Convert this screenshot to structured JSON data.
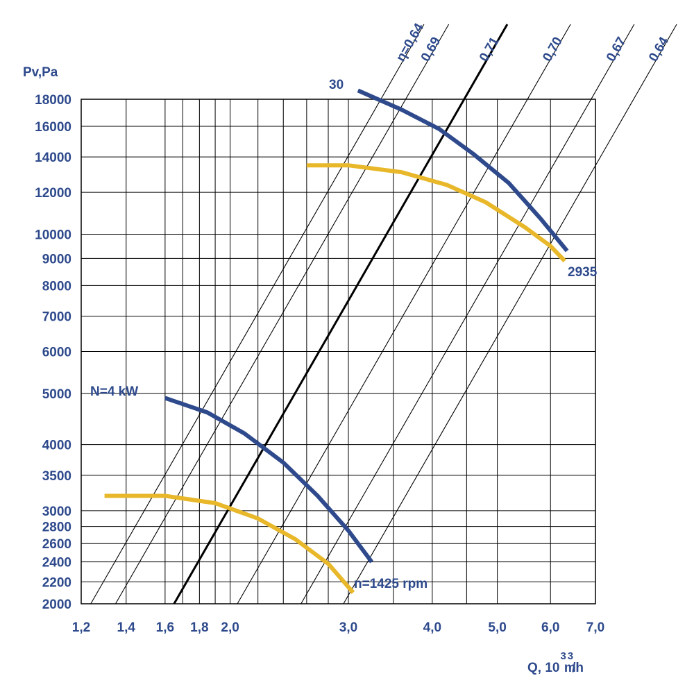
{
  "chart_data": {
    "type": "line",
    "title": "",
    "xlabel": "Q, 10",
    "xlabel_sup": "3",
    "xlabel_unit_m": "m",
    "xlabel_unit_sup": "3",
    "xlabel_unit_tail": "/h",
    "ylabel": "Pv,Pa",
    "xscale": "log",
    "yscale": "log",
    "xlim": [
      1.2,
      7.0
    ],
    "ylim": [
      2000,
      18000
    ],
    "x_ticks": [
      {
        "value": 1.2,
        "label": "1,2"
      },
      {
        "value": 1.4,
        "label": "1,4"
      },
      {
        "value": 1.6,
        "label": "1,6"
      },
      {
        "value": 1.8,
        "label": "1,8"
      },
      {
        "value": 2.0,
        "label": "2,0"
      },
      {
        "value": 3.0,
        "label": "3,0"
      },
      {
        "value": 4.0,
        "label": "4,0"
      },
      {
        "value": 5.0,
        "label": "5,0"
      },
      {
        "value": 6.0,
        "label": "6,0"
      },
      {
        "value": 7.0,
        "label": "7,0"
      }
    ],
    "x_gridlines": [
      1.2,
      1.4,
      1.6,
      1.7,
      1.8,
      1.9,
      2.0,
      2.2,
      2.4,
      2.6,
      2.8,
      3.0,
      3.5,
      4.0,
      4.5,
      5.0,
      6.0,
      7.0
    ],
    "y_ticks": [
      {
        "value": 18000,
        "label": "18000"
      },
      {
        "value": 16000,
        "label": "16000"
      },
      {
        "value": 14000,
        "label": "14000"
      },
      {
        "value": 12000,
        "label": "12000"
      },
      {
        "value": 10000,
        "label": "10000"
      },
      {
        "value": 9000,
        "label": "9000"
      },
      {
        "value": 8000,
        "label": "8000"
      },
      {
        "value": 7000,
        "label": "7000"
      },
      {
        "value": 6000,
        "label": "6000"
      },
      {
        "value": 5000,
        "label": "5000"
      },
      {
        "value": 4000,
        "label": "4000"
      },
      {
        "value": 3500,
        "label": "3500"
      },
      {
        "value": 3000,
        "label": "3000"
      },
      {
        "value": 2800,
        "label": "2800"
      },
      {
        "value": 2600,
        "label": "2600"
      },
      {
        "value": 2400,
        "label": "2400"
      },
      {
        "value": 2200,
        "label": "2200"
      },
      {
        "value": 2000,
        "label": "2000"
      }
    ],
    "series": [
      {
        "name": "pressure-2935",
        "color": "#e8b82a",
        "x": [
          2.6,
          3.0,
          3.6,
          4.2,
          4.8,
          5.5,
          6.0,
          6.3
        ],
        "y": [
          13500,
          13500,
          13100,
          12400,
          11500,
          10300,
          9500,
          8900
        ]
      },
      {
        "name": "power-2935",
        "color": "#2e4a8c",
        "x": [
          3.1,
          3.6,
          4.1,
          4.6,
          5.2,
          5.8,
          6.35
        ],
        "y": [
          18700,
          17200,
          15800,
          14200,
          12500,
          10700,
          9300
        ]
      },
      {
        "name": "pressure-1425",
        "color": "#e8b82a",
        "x": [
          1.3,
          1.6,
          1.9,
          2.2,
          2.5,
          2.8,
          3.05
        ],
        "y": [
          3200,
          3200,
          3100,
          2900,
          2650,
          2380,
          2100
        ]
      },
      {
        "name": "power-1425",
        "color": "#2e4a8c",
        "x": [
          1.6,
          1.85,
          2.1,
          2.4,
          2.7,
          3.0,
          3.25
        ],
        "y": [
          4900,
          4600,
          4200,
          3700,
          3200,
          2750,
          2400
        ]
      }
    ],
    "efficiency_lines": [
      {
        "label": "η=0,64",
        "q_at_2000": 1.24,
        "bold": false
      },
      {
        "label": "0,69",
        "q_at_2000": 1.35,
        "bold": false
      },
      {
        "label": "0,71",
        "q_at_2000": 1.65,
        "bold": true
      },
      {
        "label": "0,70",
        "q_at_2000": 2.05,
        "bold": false
      },
      {
        "label": "0,67",
        "q_at_2000": 2.55,
        "bold": false
      },
      {
        "label": "0,64",
        "q_at_2000": 2.95,
        "bold": false
      }
    ],
    "annotations": {
      "top_power": "30",
      "bottom_power": "N=4 kW",
      "high_speed": "2935",
      "low_speed": "n=1425 rpm"
    }
  }
}
